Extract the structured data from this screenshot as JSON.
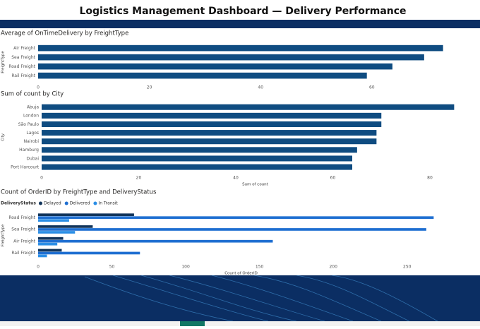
{
  "title": "Logistics Management Dashboard — Delivery Performance",
  "chart_data": [
    {
      "type": "bar",
      "orientation": "horizontal",
      "title": "Average of OnTimeDelivery by FreightType",
      "y_label": "FreightType",
      "categories": [
        "Air Freight",
        "Sea Freight",
        "Road Freight",
        "Rail Freight"
      ],
      "values": [
        72.8,
        69.4,
        63.7,
        59.1
      ],
      "color": "#0f4c81",
      "xlim": [
        0,
        75
      ],
      "xticks": [
        0,
        20,
        40,
        60
      ]
    },
    {
      "type": "bar",
      "orientation": "horizontal",
      "title": "Sum of count by City",
      "y_label": "City",
      "x_label": "Sum of count",
      "categories": [
        "Abuja",
        "London",
        "São Paulo",
        "Lagos",
        "Nairobi",
        "Hamburg",
        "Dubai",
        "Port Harcourt"
      ],
      "values": [
        85,
        70,
        70,
        69,
        69,
        65,
        64,
        64
      ],
      "color": "#0f4c81",
      "xlim": [
        0,
        88
      ],
      "xticks": [
        0,
        20,
        40,
        60,
        80
      ]
    },
    {
      "type": "bar",
      "orientation": "horizontal",
      "title": "Count of OrderID by FreightType and DeliveryStatus",
      "y_label": "FreightType",
      "x_label": "Count of OrderID",
      "legend_title": "DeliveryStatus",
      "categories": [
        "Road Freight",
        "Sea Freight",
        "Air Freight",
        "Rail Freight"
      ],
      "series": [
        {
          "name": "Delayed",
          "color": "#12355b",
          "values": [
            65,
            37,
            17,
            16
          ]
        },
        {
          "name": "Delivered",
          "color": "#1f6fd1",
          "values": [
            268,
            263,
            159,
            69
          ]
        },
        {
          "name": "In Transit",
          "color": "#2a8ee6",
          "values": [
            21,
            25,
            13,
            6
          ]
        }
      ],
      "xlim": [
        0,
        275
      ],
      "xticks": [
        0,
        50,
        100,
        150,
        200,
        250
      ]
    }
  ]
}
